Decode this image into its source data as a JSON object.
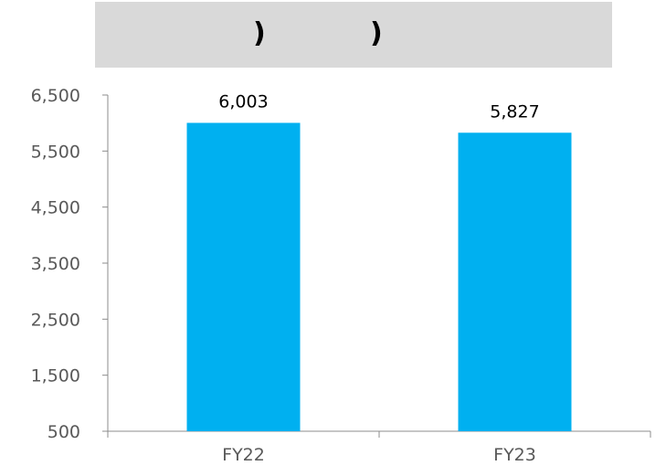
{
  "title_banner": {
    "marks": [
      ")",
      ")"
    ],
    "background": "#d9d9d9"
  },
  "chart_data": {
    "type": "bar",
    "categories": [
      "FY22",
      "FY23"
    ],
    "values": [
      6003,
      5827
    ],
    "value_labels": [
      "6,003",
      "5,827"
    ],
    "y_ticks": [
      500,
      1500,
      2500,
      3500,
      4500,
      5500,
      6500
    ],
    "y_tick_labels": [
      "500",
      "1,500",
      "2,500",
      "3,500",
      "4,500",
      "5,500",
      "6,500"
    ],
    "ylim": [
      500,
      6500
    ],
    "grid": false,
    "bar_color": "#00b0f0",
    "axis_color": "#8c8c8c"
  }
}
